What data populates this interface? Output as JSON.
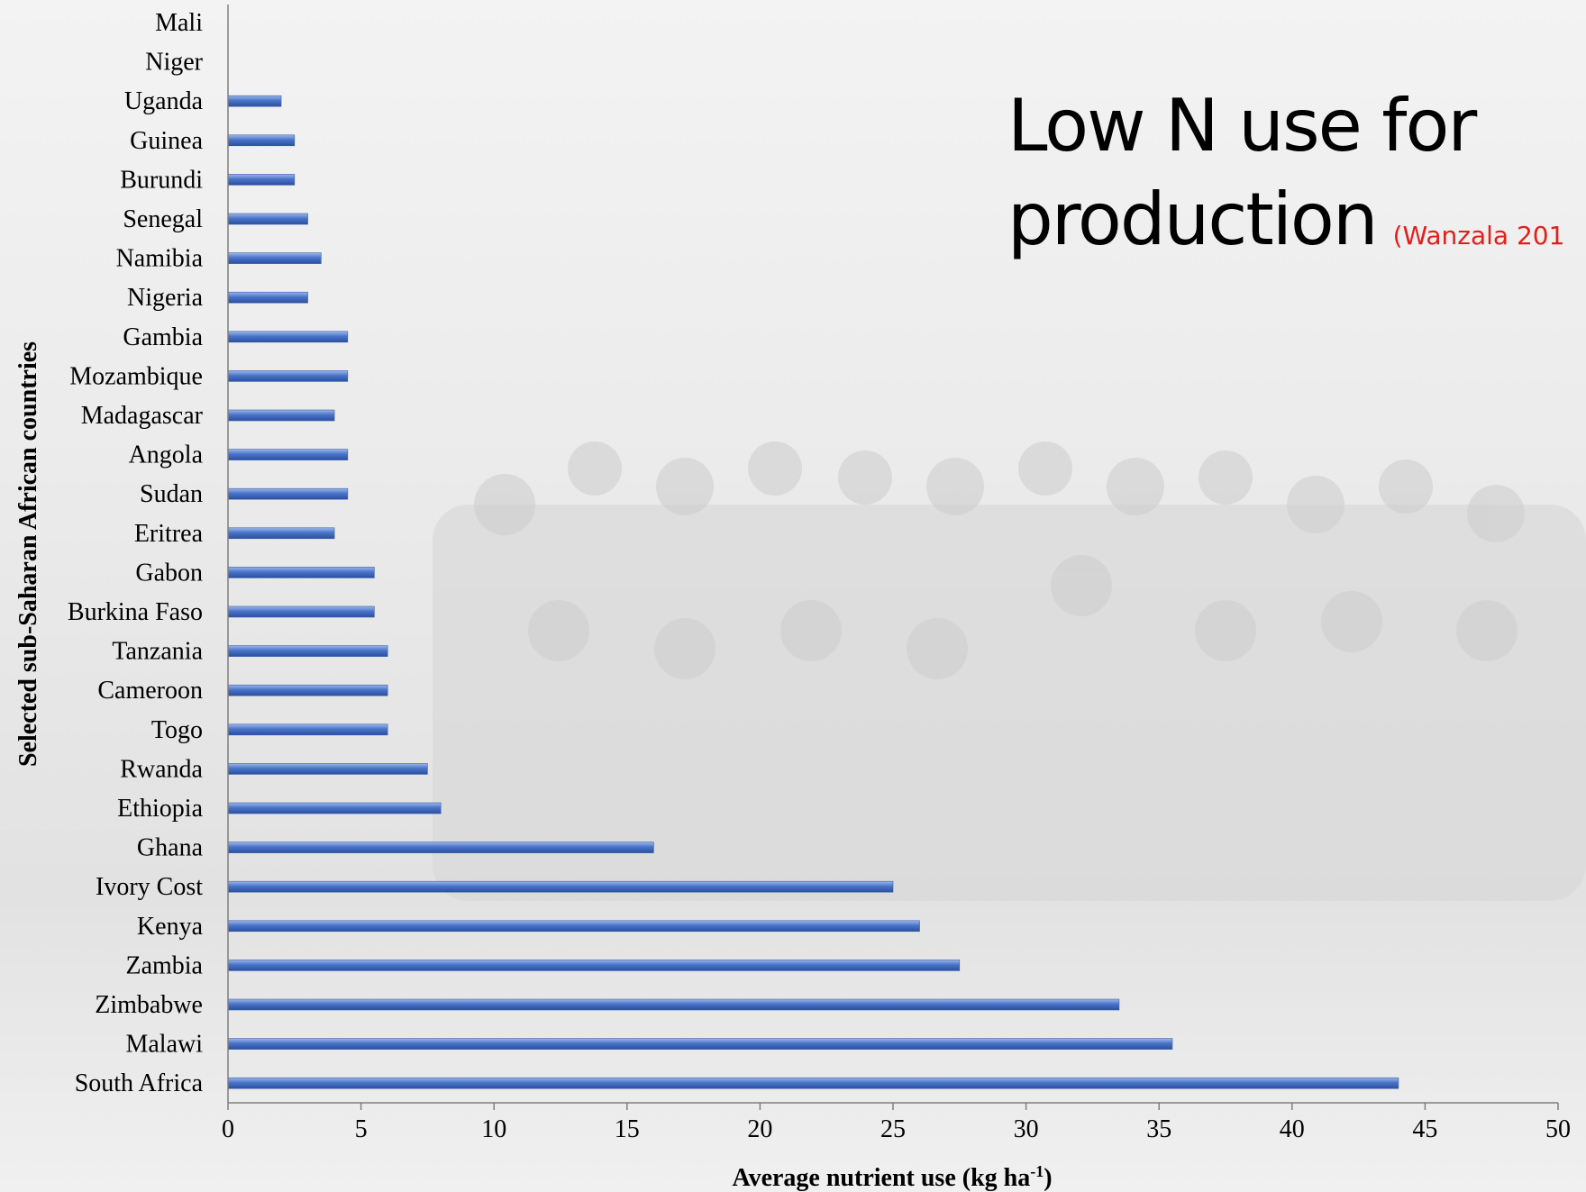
{
  "slide": {
    "title_line1": "Low N use for",
    "title_line2": "production",
    "citation": "(Wanzala 201",
    "citation_color": "#e0201b"
  },
  "chart_data": {
    "type": "bar",
    "orientation": "horizontal",
    "categories": [
      "Mali",
      "Niger",
      "Uganda",
      "Guinea",
      "Burundi",
      "Senegal",
      "Namibia",
      "Nigeria",
      "Gambia",
      "Mozambique",
      "Madagascar",
      "Angola",
      "Sudan",
      "Eritrea",
      "Gabon",
      "Burkina Faso",
      "Tanzania",
      "Cameroon",
      "Togo",
      "Rwanda",
      "Ethiopia",
      "Ghana",
      "Ivory Cost",
      "Kenya",
      "Zambia",
      "Zimbabwe",
      "Malawi",
      "South Africa"
    ],
    "values": [
      0,
      0,
      2.0,
      2.5,
      2.5,
      3.0,
      3.5,
      3.0,
      4.5,
      4.5,
      4.0,
      4.5,
      4.5,
      4.0,
      5.5,
      5.5,
      6.0,
      6.0,
      6.0,
      7.5,
      8.0,
      16.0,
      25.0,
      26.0,
      27.5,
      33.5,
      35.5,
      44.0
    ],
    "xlabel": "Average nutrient use (kg ha",
    "xlabel_superscript": "-1",
    "xlabel_suffix": ")",
    "ylabel": "Selected sub-Saharan African countries",
    "xlim": [
      0,
      50
    ],
    "xticks": [
      0,
      5,
      10,
      15,
      20,
      25,
      30,
      35,
      40,
      45,
      50
    ],
    "grid": false,
    "bar_color": "#4a74c9"
  }
}
